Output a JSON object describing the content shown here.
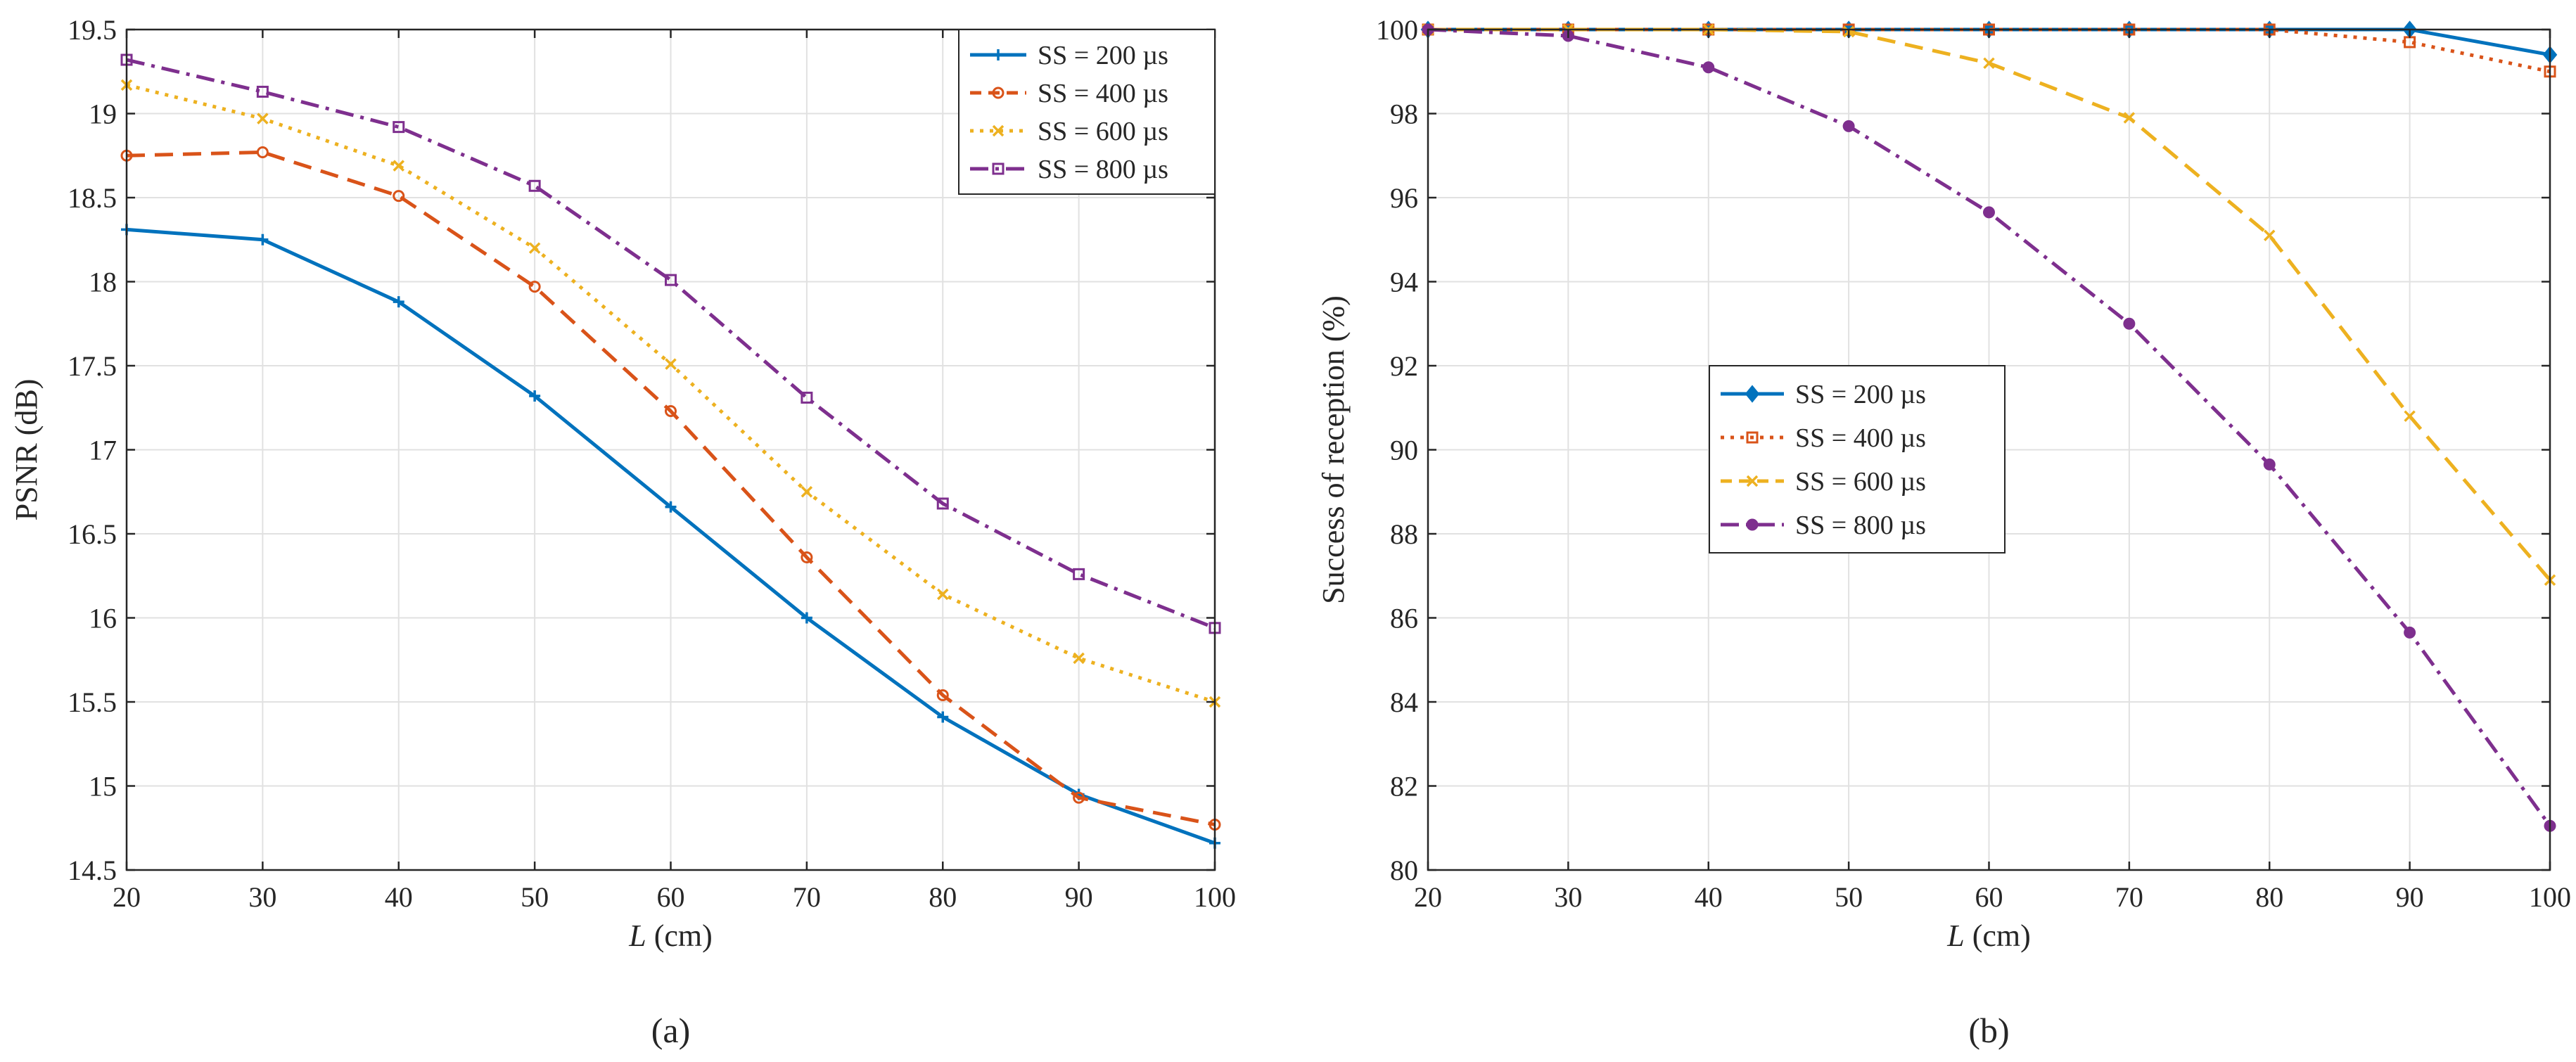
{
  "chart_data": [
    {
      "type": "line",
      "panel_label": "(a)",
      "title": "",
      "xlabel_italic": "L",
      "xlabel_rest": " (cm)",
      "ylabel": "PSNR (dB)",
      "xlim": [
        20,
        100
      ],
      "ylim": [
        14.5,
        19.5
      ],
      "xticks": [
        20,
        30,
        40,
        50,
        60,
        70,
        80,
        90,
        100
      ],
      "yticks": [
        14.5,
        15,
        15.5,
        16,
        16.5,
        17,
        17.5,
        18,
        18.5,
        19,
        19.5
      ],
      "ytick_labels": [
        "14.5",
        "15",
        "15.5",
        "16",
        "16.5",
        "17",
        "17.5",
        "18",
        "18.5",
        "19",
        "19.5"
      ],
      "grid": true,
      "legend_position": "top-right",
      "x": [
        20,
        30,
        40,
        50,
        60,
        70,
        80,
        90,
        100
      ],
      "series": [
        {
          "name": "SS = 200 µs",
          "color": "#0072BD",
          "dash": "solid",
          "marker": "plus",
          "values": [
            18.31,
            18.25,
            17.88,
            17.32,
            16.66,
            16.0,
            15.41,
            14.95,
            14.66
          ]
        },
        {
          "name": "SS = 400 µs",
          "color": "#D95319",
          "dash": "dashed",
          "marker": "circle",
          "values": [
            18.75,
            18.77,
            18.51,
            17.97,
            17.23,
            16.36,
            15.54,
            14.93,
            14.77
          ]
        },
        {
          "name": "SS = 600 µs",
          "color": "#EDB120",
          "dash": "dotted",
          "marker": "x",
          "values": [
            19.17,
            18.97,
            18.69,
            18.2,
            17.51,
            16.75,
            16.14,
            15.76,
            15.5
          ]
        },
        {
          "name": "SS = 800 µs",
          "color": "#7E2F8E",
          "dash": "dashdot",
          "marker": "square",
          "values": [
            19.32,
            19.13,
            18.92,
            18.57,
            18.01,
            17.31,
            16.68,
            16.26,
            15.94
          ]
        }
      ]
    },
    {
      "type": "line",
      "panel_label": "(b)",
      "title": "",
      "xlabel_italic": "L",
      "xlabel_rest": " (cm)",
      "ylabel": "Success of reception (%)",
      "xlim": [
        20,
        100
      ],
      "ylim": [
        80,
        100
      ],
      "xticks": [
        20,
        30,
        40,
        50,
        60,
        70,
        80,
        90,
        100
      ],
      "yticks": [
        80,
        82,
        84,
        86,
        88,
        90,
        92,
        94,
        96,
        98,
        100
      ],
      "ytick_labels": [
        "80",
        "82",
        "84",
        "86",
        "88",
        "90",
        "92",
        "94",
        "96",
        "98",
        "100"
      ],
      "grid": true,
      "legend_position": "center-left",
      "x": [
        20,
        30,
        40,
        50,
        60,
        70,
        80,
        90,
        100
      ],
      "series": [
        {
          "name": "SS = 200 µs",
          "color": "#0072BD",
          "dash": "solid",
          "marker": "diamond",
          "values": [
            100,
            100,
            100,
            100,
            100,
            100,
            100,
            100,
            99.4
          ]
        },
        {
          "name": "SS = 400 µs",
          "color": "#D95319",
          "dash": "dotted",
          "marker": "square",
          "values": [
            100,
            100,
            100,
            100,
            100,
            100,
            100,
            99.7,
            99.0
          ]
        },
        {
          "name": "SS = 600 µs",
          "color": "#EDB120",
          "dash": "dashed",
          "marker": "x",
          "values": [
            100,
            100,
            100,
            99.95,
            99.2,
            97.9,
            95.1,
            90.8,
            86.9
          ]
        },
        {
          "name": "SS = 800 µs",
          "color": "#7E2F8E",
          "dash": "dashdot",
          "marker": "circle",
          "values": [
            100,
            99.85,
            99.1,
            97.7,
            95.65,
            93.0,
            89.65,
            85.65,
            81.05
          ]
        }
      ]
    }
  ]
}
